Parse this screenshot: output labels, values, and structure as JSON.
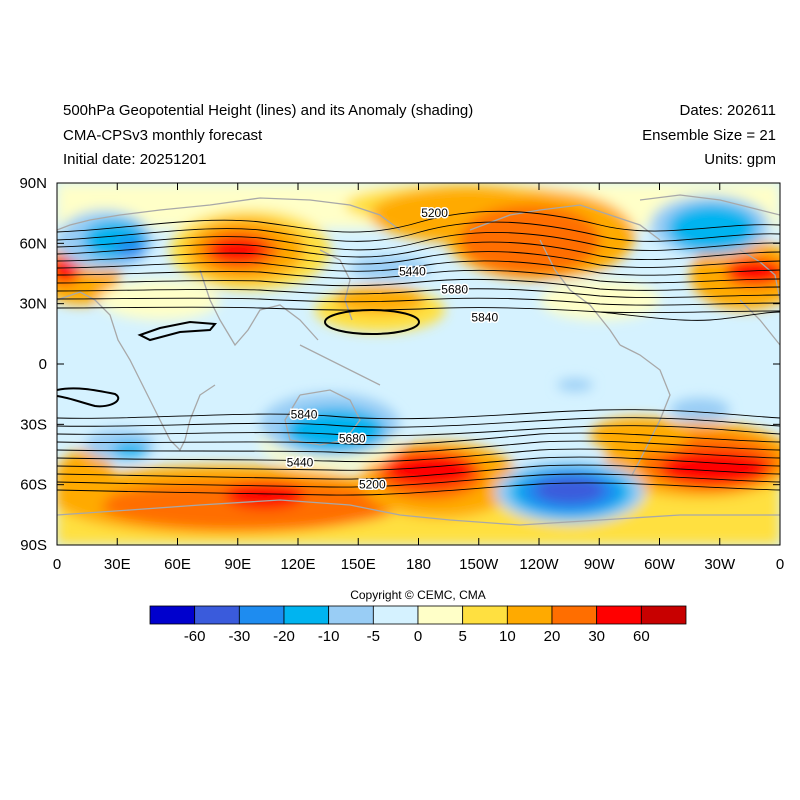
{
  "header": {
    "title": "500hPa Geopotential Height (lines) and its Anomaly (shading)",
    "subtitle": "CMA-CPSv3 monthly forecast",
    "initial_date": "Initial date: 20251201",
    "dates": "Dates: 202611",
    "ensemble": "Ensemble Size = 21",
    "units": "Units: gpm"
  },
  "map": {
    "lon_ticks": [
      "0",
      "30E",
      "60E",
      "90E",
      "120E",
      "150E",
      "180",
      "150W",
      "120W",
      "90W",
      "60W",
      "30W",
      "0"
    ],
    "lat_ticks": [
      "90N",
      "60N",
      "30N",
      "0",
      "30S",
      "60S",
      "90S"
    ],
    "contour_labels": [
      {
        "text": "5200",
        "lon": 188,
        "lat": 75
      },
      {
        "text": "5440",
        "lon": 177,
        "lat": 46
      },
      {
        "text": "5680",
        "lon": 198,
        "lat": 37
      },
      {
        "text": "5840",
        "lon": 213,
        "lat": 23
      },
      {
        "text": "5840",
        "lon": 123,
        "lat": -25
      },
      {
        "text": "5680",
        "lon": 147,
        "lat": -37
      },
      {
        "text": "5440",
        "lon": 121,
        "lat": -49
      },
      {
        "text": "5200",
        "lon": 157,
        "lat": -60
      }
    ]
  },
  "colorbar": {
    "labels": [
      "-60",
      "-30",
      "-20",
      "-10",
      "-5",
      "0",
      "5",
      "10",
      "20",
      "30",
      "60"
    ],
    "colors": [
      "#0000cd",
      "#3a5bdc",
      "#1e8cf0",
      "#00b4f0",
      "#99cdf5",
      "#d5f2ff",
      "#ffffc8",
      "#ffe040",
      "#ffaa00",
      "#ff6e00",
      "#ff0000",
      "#c80000"
    ]
  },
  "copyright": "Copyright © CEMC, CMA",
  "colors": {
    "land_outline": "#a8a8a8",
    "contour": "#000000"
  }
}
